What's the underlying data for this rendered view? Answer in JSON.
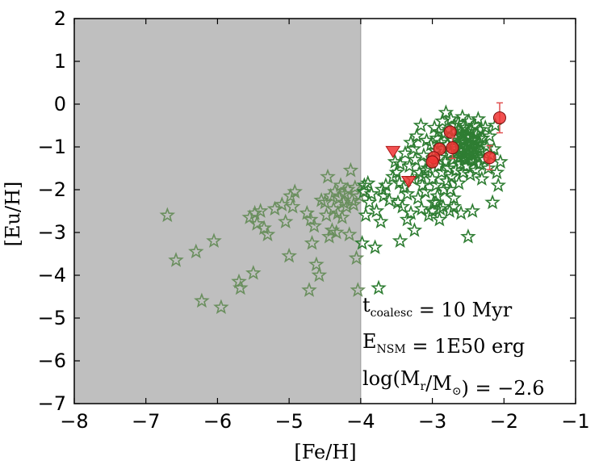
{
  "chart_data": {
    "type": "scatter",
    "title": "",
    "xlabel": "[Fe/H]",
    "ylabel": "[Eu/H]",
    "xlim": [
      -8,
      -1
    ],
    "ylim": [
      -7,
      2
    ],
    "xticks": [
      -8,
      -7,
      -6,
      -5,
      -4,
      -3,
      -2,
      -1
    ],
    "yticks": [
      -7,
      -6,
      -5,
      -4,
      -3,
      -2,
      -1,
      0,
      1,
      2
    ],
    "xtick_labels": [
      "−8",
      "−7",
      "−6",
      "−5",
      "−4",
      "−3",
      "−2",
      "−1"
    ],
    "ytick_labels": [
      "−7",
      "−6",
      "−5",
      "−4",
      "−3",
      "−2",
      "−1",
      "0",
      "1",
      "2"
    ],
    "shaded_region": {
      "x": [
        -8,
        -4
      ],
      "color": "#bfbfbf"
    },
    "colors": {
      "stars": "#2e7d32",
      "stars_faint": "#6a8f5e",
      "obs_points": "#f03232",
      "errorbars": "#e05050",
      "upper_limits": "#f03232"
    },
    "series": [
      {
        "name": "Simulated stars",
        "marker": "star",
        "points": [
          [
            -6.7,
            -2.6
          ],
          [
            -6.58,
            -3.65
          ],
          [
            -6.3,
            -3.45
          ],
          [
            -6.22,
            -4.6
          ],
          [
            -6.05,
            -3.2
          ],
          [
            -5.95,
            -4.75
          ],
          [
            -5.7,
            -4.15
          ],
          [
            -5.68,
            -4.3
          ],
          [
            -5.55,
            -2.65
          ],
          [
            -5.5,
            -3.95
          ],
          [
            -5.48,
            -2.55
          ],
          [
            -5.45,
            -2.8
          ],
          [
            -5.4,
            -2.5
          ],
          [
            -5.35,
            -2.9
          ],
          [
            -5.3,
            -3.05
          ],
          [
            -5.2,
            -2.45
          ],
          [
            -5.1,
            -2.35
          ],
          [
            -5.05,
            -2.75
          ],
          [
            -5.0,
            -3.55
          ],
          [
            -4.98,
            -2.15
          ],
          [
            -4.95,
            -2.4
          ],
          [
            -4.92,
            -2.05
          ],
          [
            -4.75,
            -2.55
          ],
          [
            -4.72,
            -4.35
          ],
          [
            -4.7,
            -2.7
          ],
          [
            -4.68,
            -3.25
          ],
          [
            -4.65,
            -2.85
          ],
          [
            -4.62,
            -3.75
          ],
          [
            -4.58,
            -4.0
          ],
          [
            -4.55,
            -2.25
          ],
          [
            -4.5,
            -2.3
          ],
          [
            -4.48,
            -2.6
          ],
          [
            -4.46,
            -1.7
          ],
          [
            -4.44,
            -3.1
          ],
          [
            -4.42,
            -2.15
          ],
          [
            -4.4,
            -2.95
          ],
          [
            -4.38,
            -2.45
          ],
          [
            -4.36,
            -2.05
          ],
          [
            -4.34,
            -3.0
          ],
          [
            -4.32,
            -2.55
          ],
          [
            -4.3,
            -2.2
          ],
          [
            -4.28,
            -1.9
          ],
          [
            -4.26,
            -2.65
          ],
          [
            -4.24,
            -2.3
          ],
          [
            -4.22,
            -2.1
          ],
          [
            -4.2,
            -2.4
          ],
          [
            -4.18,
            -2.0
          ],
          [
            -4.16,
            -3.05
          ],
          [
            -4.14,
            -1.55
          ],
          [
            -4.12,
            -2.25
          ],
          [
            -4.1,
            -2.35
          ],
          [
            -4.08,
            -1.95
          ],
          [
            -4.06,
            -3.6
          ],
          [
            -4.04,
            -4.35
          ],
          [
            -4.02,
            -2.15
          ],
          [
            -3.98,
            -3.25
          ],
          [
            -3.96,
            -2.05
          ],
          [
            -3.95,
            -1.9
          ],
          [
            -3.93,
            -2.6
          ],
          [
            -3.9,
            -1.85
          ],
          [
            -3.88,
            -2.3
          ],
          [
            -3.85,
            -2.1
          ],
          [
            -3.8,
            -3.35
          ],
          [
            -3.78,
            -2.5
          ],
          [
            -3.75,
            -4.3
          ],
          [
            -3.72,
            -2.75
          ],
          [
            -3.7,
            -2.0
          ],
          [
            -3.68,
            -2.15
          ],
          [
            -3.65,
            -1.9
          ],
          [
            -3.6,
            -2.25
          ],
          [
            -3.55,
            -1.7
          ],
          [
            -3.52,
            -1.35
          ],
          [
            -3.5,
            -1.6
          ],
          [
            -3.48,
            -2.3
          ],
          [
            -3.46,
            -1.85
          ],
          [
            -3.45,
            -3.2
          ],
          [
            -3.42,
            -2.4
          ],
          [
            -3.4,
            -1.95
          ],
          [
            -3.38,
            -1.15
          ],
          [
            -3.35,
            -2.1
          ],
          [
            -3.32,
            -1.45
          ],
          [
            -3.3,
            -2.55
          ],
          [
            -3.28,
            -1.75
          ],
          [
            -3.26,
            -1.05
          ],
          [
            -3.25,
            -2.95
          ],
          [
            -3.24,
            -1.3
          ],
          [
            -3.22,
            -0.75
          ],
          [
            -3.2,
            -2.2
          ],
          [
            -3.18,
            -1.6
          ],
          [
            -3.16,
            -0.5
          ],
          [
            -3.15,
            -2.45
          ],
          [
            -3.14,
            -1.9
          ],
          [
            -3.12,
            -1.2
          ],
          [
            -3.1,
            -2.05
          ],
          [
            -3.08,
            -0.85
          ],
          [
            -3.06,
            -1.5
          ],
          [
            -3.05,
            -2.6
          ],
          [
            -3.04,
            -1.35
          ],
          [
            -3.02,
            -0.95
          ],
          [
            -3.0,
            -1.75
          ],
          [
            -2.98,
            -2.3
          ],
          [
            -2.97,
            -0.55
          ],
          [
            -2.96,
            -1.1
          ],
          [
            -2.95,
            -1.9
          ],
          [
            -2.94,
            -0.8
          ],
          [
            -2.93,
            -2.15
          ],
          [
            -2.92,
            -1.45
          ],
          [
            -2.91,
            -0.65
          ],
          [
            -2.9,
            -1.25
          ],
          [
            -2.89,
            -2.45
          ],
          [
            -2.88,
            -0.9
          ],
          [
            -2.87,
            -1.6
          ],
          [
            -2.86,
            -0.4
          ],
          [
            -2.85,
            -1.05
          ],
          [
            -2.84,
            -2.0
          ],
          [
            -2.83,
            -0.7
          ],
          [
            -2.82,
            -1.35
          ],
          [
            -2.81,
            -0.2
          ],
          [
            -2.8,
            -1.8
          ],
          [
            -2.79,
            -0.95
          ],
          [
            -2.78,
            -1.5
          ],
          [
            -2.77,
            -0.6
          ],
          [
            -2.76,
            -2.5
          ],
          [
            -2.75,
            -1.15
          ],
          [
            -2.74,
            -0.35
          ],
          [
            -2.73,
            -1.7
          ],
          [
            -2.72,
            -0.85
          ],
          [
            -2.71,
            -1.3
          ],
          [
            -2.7,
            -2.2
          ],
          [
            -2.69,
            -0.5
          ],
          [
            -2.68,
            -1.0
          ],
          [
            -2.67,
            -1.55
          ],
          [
            -2.66,
            -0.75
          ],
          [
            -2.65,
            -1.25
          ],
          [
            -2.64,
            -0.45
          ],
          [
            -2.63,
            -1.85
          ],
          [
            -2.62,
            -0.95
          ],
          [
            -2.61,
            -1.4
          ],
          [
            -2.6,
            -0.65
          ],
          [
            -2.59,
            -1.1
          ],
          [
            -2.58,
            -0.3
          ],
          [
            -2.57,
            -1.6
          ],
          [
            -2.56,
            -0.85
          ],
          [
            -2.55,
            -1.3
          ],
          [
            -2.54,
            -0.55
          ],
          [
            -2.53,
            -1.05
          ],
          [
            -2.52,
            -1.45
          ],
          [
            -2.51,
            -0.75
          ],
          [
            -2.5,
            -1.2
          ],
          [
            -2.5,
            -3.1
          ],
          [
            -2.49,
            -0.4
          ],
          [
            -2.48,
            -0.95
          ],
          [
            -2.47,
            -1.65
          ],
          [
            -2.46,
            -0.6
          ],
          [
            -2.45,
            -1.15
          ],
          [
            -2.44,
            -2.5
          ],
          [
            -2.43,
            -0.85
          ],
          [
            -2.42,
            -1.35
          ],
          [
            -2.41,
            -0.5
          ],
          [
            -2.4,
            -1.0
          ],
          [
            -2.39,
            -1.55
          ],
          [
            -2.38,
            -0.7
          ],
          [
            -2.37,
            -1.25
          ],
          [
            -2.36,
            -0.35
          ],
          [
            -2.35,
            -0.9
          ],
          [
            -2.34,
            -1.4
          ],
          [
            -2.33,
            -0.6
          ],
          [
            -2.32,
            -1.1
          ],
          [
            -2.31,
            -1.75
          ],
          [
            -2.3,
            -0.8
          ],
          [
            -2.28,
            -1.3
          ],
          [
            -2.26,
            -0.55
          ],
          [
            -2.24,
            -1.0
          ],
          [
            -2.22,
            -1.5
          ],
          [
            -2.2,
            -0.75
          ],
          [
            -2.18,
            -1.2
          ],
          [
            -2.16,
            -2.3
          ],
          [
            -2.14,
            -1.05
          ],
          [
            -2.12,
            -0.5
          ],
          [
            -2.1,
            -1.6
          ],
          [
            -2.08,
            -1.9
          ],
          [
            -2.05,
            -1.35
          ],
          [
            -2.66,
            -1.05
          ],
          [
            -2.64,
            -1.15
          ],
          [
            -2.62,
            -0.95
          ],
          [
            -2.6,
            -1.05
          ],
          [
            -2.58,
            -0.85
          ],
          [
            -2.56,
            -1.15
          ],
          [
            -2.54,
            -0.9
          ],
          [
            -2.52,
            -1.0
          ],
          [
            -2.5,
            -0.8
          ],
          [
            -2.48,
            -1.1
          ],
          [
            -2.46,
            -0.95
          ],
          [
            -2.44,
            -1.05
          ],
          [
            -2.42,
            -0.85
          ],
          [
            -2.4,
            -1.15
          ],
          [
            -2.38,
            -0.95
          ],
          [
            -2.62,
            -1.25
          ],
          [
            -2.58,
            -0.7
          ],
          [
            -2.55,
            -1.25
          ],
          [
            -2.5,
            -0.65
          ],
          [
            -2.45,
            -1.3
          ],
          [
            -2.6,
            -0.75
          ],
          [
            -2.52,
            -0.72
          ],
          [
            -2.47,
            -0.78
          ],
          [
            -2.57,
            -1.2
          ],
          [
            -2.53,
            -1.3
          ],
          [
            -2.44,
            -1.2
          ],
          [
            -2.67,
            -0.8
          ],
          [
            -2.64,
            -0.6
          ],
          [
            -2.36,
            -1.05
          ],
          [
            -2.34,
            -0.8
          ],
          [
            -3.0,
            -2.5
          ],
          [
            -2.9,
            -2.7
          ],
          [
            -2.7,
            -2.4
          ],
          [
            -2.6,
            -2.55
          ],
          [
            -3.35,
            -2.7
          ],
          [
            -2.95,
            -2.3
          ],
          [
            -3.15,
            -1.7
          ],
          [
            -3.3,
            -0.9
          ],
          [
            -3.45,
            -1.4
          ],
          [
            -3.1,
            -1.55
          ],
          [
            -2.85,
            -2.4
          ],
          [
            -2.75,
            -2.0
          ]
        ]
      },
      {
        "name": "Observations",
        "marker": "circle",
        "points": [
          [
            -2.06,
            -0.32
          ],
          [
            -2.2,
            -1.25
          ],
          [
            -2.75,
            -0.65
          ],
          [
            -2.72,
            -1.02
          ],
          [
            -2.9,
            -1.05
          ],
          [
            -2.98,
            -1.25
          ],
          [
            -3.0,
            -1.35
          ]
        ],
        "errors": [
          0.35,
          0.28,
          0,
          0.25,
          0,
          0,
          0
        ]
      },
      {
        "name": "Upper limits",
        "marker": "triangle-down",
        "points": [
          [
            -3.55,
            -1.1
          ],
          [
            -3.33,
            -1.8
          ]
        ]
      }
    ],
    "annotations": [
      {
        "name": "annotation-t-coalesc",
        "parts": [
          {
            "text": "t",
            "sub": false
          },
          {
            "text": "coalesc",
            "sub": true
          },
          {
            "text": " = 10 Myr",
            "sub": false
          }
        ]
      },
      {
        "name": "annotation-e-nsm",
        "parts": [
          {
            "text": "E",
            "sub": false
          },
          {
            "text": "NSM",
            "sub": true
          },
          {
            "text": " = 1E50 erg",
            "sub": false
          }
        ]
      },
      {
        "name": "annotation-mass-ratio",
        "parts": [
          {
            "text": "log(M",
            "sub": false
          },
          {
            "text": "r",
            "sub": true
          },
          {
            "text": "/M",
            "sub": false
          },
          {
            "text": "⊙",
            "sub": true
          },
          {
            "text": ") = −2.6",
            "sub": false
          }
        ]
      }
    ]
  }
}
